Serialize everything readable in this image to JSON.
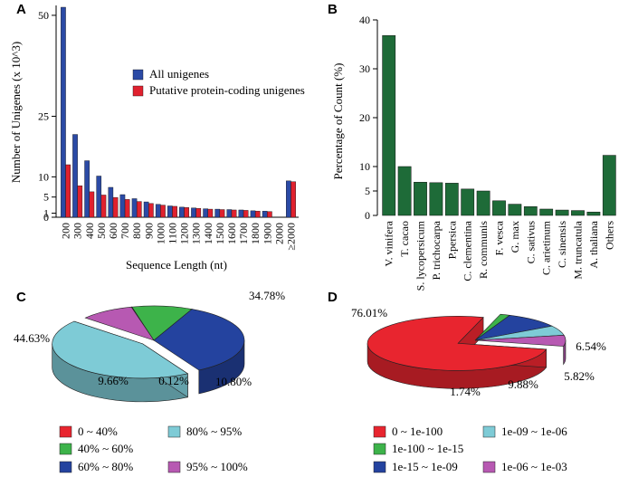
{
  "chart_data": [
    {
      "panel": "A",
      "type": "bar",
      "xlabel": "Sequence Length (nt)",
      "ylabel": "Number of Unigenes (x 10^3)",
      "ylim": [
        0,
        52
      ],
      "yticks": [
        0,
        1,
        5,
        10,
        25,
        50
      ],
      "categories": [
        "200",
        "300",
        "400",
        "500",
        "600",
        "700",
        "800",
        "900",
        "1000",
        "1100",
        "1200",
        "1300",
        "1400",
        "1500",
        "1600",
        "1700",
        "1800",
        "1900",
        "2000",
        "≥2000"
      ],
      "series": [
        {
          "name": "All unigenes",
          "color": "#2b4aa5",
          "values": [
            52.0,
            20.5,
            14.0,
            10.2,
            7.4,
            5.6,
            4.6,
            3.8,
            3.2,
            2.8,
            2.5,
            2.3,
            2.1,
            2.0,
            1.9,
            1.8,
            1.6,
            1.5,
            0,
            9.0
          ]
        },
        {
          "name": "Putative protein-coding unigenes",
          "color": "#e0212e",
          "values": [
            13.0,
            7.8,
            6.3,
            5.5,
            4.9,
            4.4,
            3.9,
            3.4,
            3.0,
            2.7,
            2.4,
            2.2,
            2.0,
            1.9,
            1.8,
            1.7,
            1.5,
            1.4,
            0,
            8.8
          ]
        }
      ],
      "legend": {
        "position": "top-right",
        "entries": [
          "All unigenes",
          "Putative protein-coding unigenes"
        ]
      }
    },
    {
      "panel": "B",
      "type": "bar",
      "ylabel": "Percentage of Count (%)",
      "ylim": [
        0,
        40
      ],
      "yticks": [
        0,
        5,
        10,
        20,
        30,
        40
      ],
      "color": "#1e6b38",
      "categories": [
        "V. vinifera",
        "T. cacao",
        "S. lycopersicum",
        "P. trichocarpa",
        "P.persica",
        "C. clementina",
        "R. communis",
        "F. vesca",
        "G. max",
        "C. sativus",
        "C. arietinum",
        "C. sinensis",
        "M. truncatula",
        "A. thaliana",
        "Others"
      ],
      "values": [
        36.8,
        10.0,
        6.8,
        6.7,
        6.6,
        5.4,
        5.0,
        3.0,
        2.3,
        1.8,
        1.3,
        1.1,
        1.0,
        0.7,
        12.3
      ]
    },
    {
      "panel": "C",
      "type": "pie",
      "labels": [
        "0 ~ 40%",
        "40% ~ 60%",
        "60% ~ 80%",
        "80% ~ 95%",
        "95% ~ 100%"
      ],
      "values": [
        0.12,
        10.8,
        34.78,
        44.63,
        9.66
      ],
      "value_labels": [
        "0.12%",
        "10.80%",
        "34.78%",
        "44.63%",
        "9.66%"
      ],
      "colors": [
        "#e8252f",
        "#3db34a",
        "#24439f",
        "#7ecbd6",
        "#b759b2"
      ],
      "exploded": [
        "80% ~ 95%"
      ]
    },
    {
      "panel": "D",
      "type": "pie",
      "labels": [
        "0 ~ 1e-100",
        "1e-100 ~ 1e-15",
        "1e-15 ~ 1e-09",
        "1e-09 ~ 1e-06",
        "1e-06 ~ 1e-03"
      ],
      "values": [
        76.01,
        1.74,
        9.88,
        5.82,
        6.54
      ],
      "value_labels": [
        "76.01%",
        "1.74%",
        "9.88%",
        "5.82%",
        "6.54%"
      ],
      "colors": [
        "#e8252f",
        "#3db34a",
        "#24439f",
        "#7ecbd6",
        "#b759b2"
      ],
      "exploded": [
        "0 ~ 1e-100"
      ]
    }
  ]
}
